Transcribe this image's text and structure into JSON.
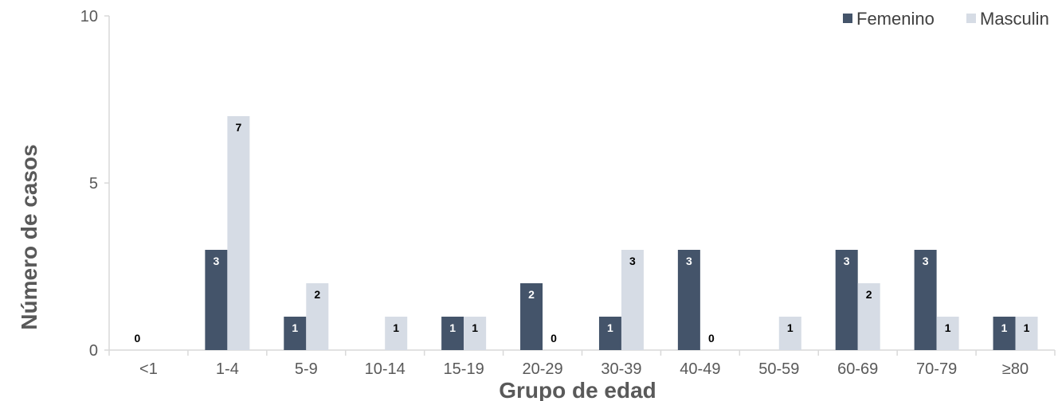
{
  "chart_data": {
    "type": "bar",
    "title": "",
    "xlabel": "Grupo de edad",
    "ylabel": "Número de casos",
    "ylim": [
      0,
      10
    ],
    "yticks": [
      0,
      5,
      10
    ],
    "grid": false,
    "legend_position": "top-right",
    "categories": [
      "<1",
      "1-4",
      "5-9",
      "10-14",
      "15-19",
      "20-29",
      "30-39",
      "40-49",
      "50-59",
      "60-69",
      "70-79",
      "≥80"
    ],
    "series": [
      {
        "name": "Femenino",
        "color": "#44546a",
        "label_color": "#ffffff",
        "values": [
          0,
          3,
          1,
          0,
          1,
          2,
          1,
          3,
          0,
          3,
          3,
          1
        ],
        "labels": [
          "0",
          "3",
          "1",
          "",
          "1",
          "2",
          "1",
          "3",
          "",
          "3",
          "3",
          "1"
        ]
      },
      {
        "name": "Masculin",
        "color": "#d6dce5",
        "label_color": "#000000",
        "values": [
          0,
          7,
          2,
          1,
          1,
          0,
          3,
          0,
          1,
          2,
          1,
          1
        ],
        "labels": [
          "",
          "7",
          "2",
          "1",
          "1",
          "0",
          "3",
          "0",
          "1",
          "2",
          "1",
          "1"
        ]
      }
    ]
  }
}
